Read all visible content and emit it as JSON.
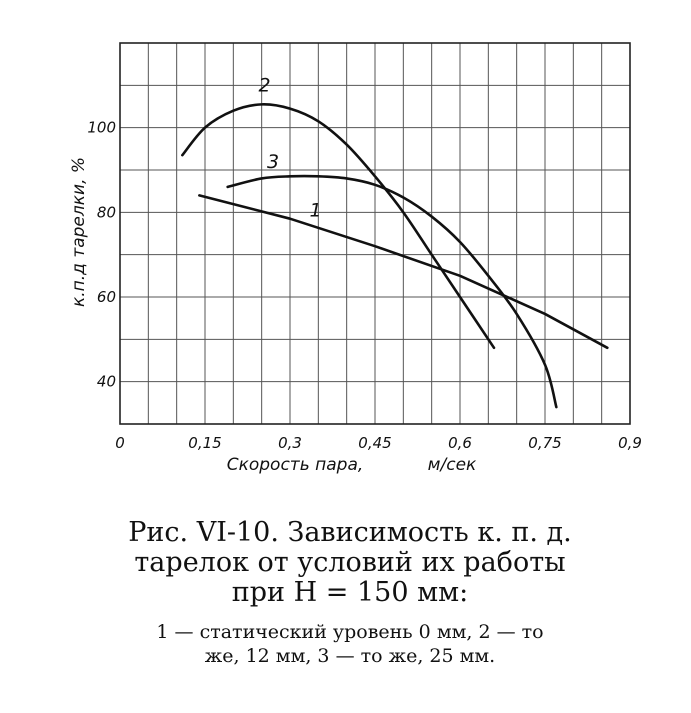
{
  "chart_data": {
    "type": "line",
    "xlabel": "Скорость пара,",
    "xunit": "м/сек",
    "ylabel": "к.п.д тарелки, %",
    "xlim": [
      0,
      0.9
    ],
    "ylim": [
      30,
      120
    ],
    "x_ticks": [
      "0",
      "0,15",
      "0,3",
      "0,45",
      "0,6",
      "0,75",
      "0,9"
    ],
    "x_tick_values": [
      0,
      0.15,
      0.3,
      0.45,
      0.6,
      0.75,
      0.9
    ],
    "y_ticks": [
      "40",
      "60",
      "80",
      "100"
    ],
    "y_tick_values": [
      40,
      60,
      80,
      100
    ],
    "grid": true,
    "series": [
      {
        "name": "1",
        "x": [
          0.14,
          0.3,
          0.45,
          0.6,
          0.75,
          0.86
        ],
        "y": [
          84,
          78.5,
          72,
          65,
          56,
          48
        ]
      },
      {
        "name": "2",
        "x": [
          0.11,
          0.15,
          0.2,
          0.25,
          0.3,
          0.35,
          0.4,
          0.45,
          0.5,
          0.55,
          0.6,
          0.66
        ],
        "y": [
          93.5,
          100,
          104,
          105.5,
          104.5,
          101.5,
          96,
          88.5,
          80,
          70,
          60,
          48
        ]
      },
      {
        "name": "3",
        "x": [
          0.19,
          0.25,
          0.3,
          0.35,
          0.4,
          0.45,
          0.5,
          0.55,
          0.6,
          0.65,
          0.7,
          0.75,
          0.77
        ],
        "y": [
          86,
          88,
          88.5,
          88.5,
          88,
          86.5,
          83.5,
          79,
          73,
          65,
          56,
          44,
          34
        ]
      }
    ]
  },
  "caption": {
    "title_line1": "Рис. VI-10. Зависимость к. п. д.",
    "title_line2": "тарелок от условий их работы",
    "title_line3": "при H = 150 мм:",
    "note_line1": "1 — статический уровень 0 мм, 2 — то",
    "note_line2": "же, 12 мм, 3 — то же, 25 мм."
  }
}
